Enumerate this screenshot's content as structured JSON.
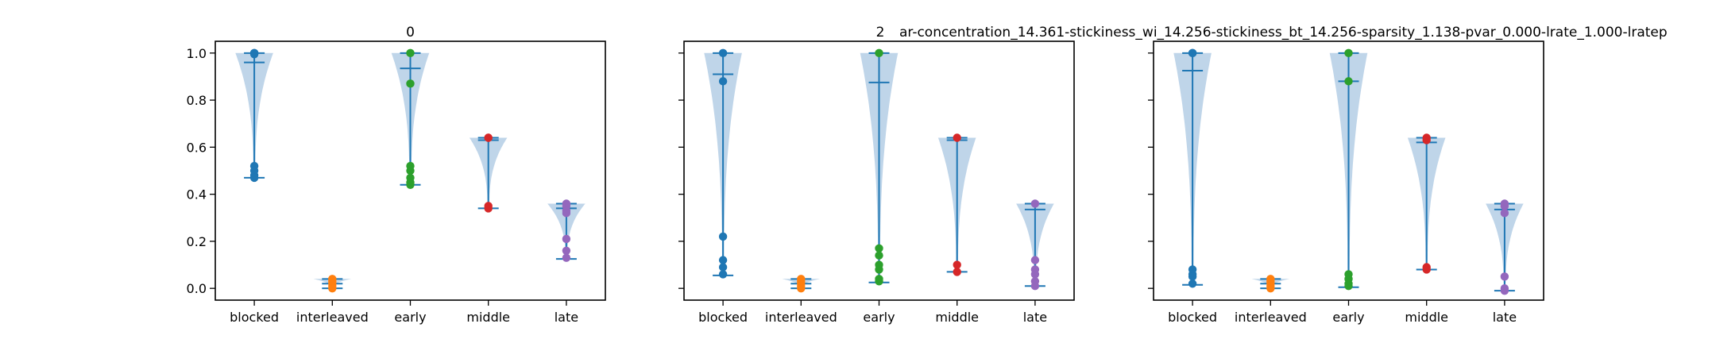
{
  "figure": {
    "long_title": "ar-concentration_14.361-stickiness_wi_14.256-stickiness_bt_14.256-sparsity_1.138-pvar_0.000-lrate_1.000-lratep"
  },
  "colors": {
    "violin_fill": "#bcd3e8",
    "stem": "#1f77b4",
    "blocked": "#1f77b4",
    "interleaved": "#ff7f0e",
    "early": "#2ca02c",
    "middle": "#d62728",
    "late": "#9467bd"
  },
  "chart_data": [
    {
      "type": "violin",
      "title": "0",
      "categories": [
        "blocked",
        "interleaved",
        "early",
        "middle",
        "late"
      ],
      "ylim": [
        -0.05,
        1.05
      ],
      "yticks": [
        0.0,
        0.2,
        0.4,
        0.6,
        0.8,
        1.0
      ],
      "ytick_labels": [
        "0.0",
        "0.2",
        "0.4",
        "0.6",
        "0.8",
        "1.0"
      ],
      "groups": [
        {
          "name": "blocked",
          "min": 0.47,
          "max": 1.0,
          "mean": 0.96,
          "points": [
            1.0,
            1.0,
            0.995,
            0.52,
            0.5,
            0.48,
            0.47
          ]
        },
        {
          "name": "interleaved",
          "min": 0.0,
          "max": 0.04,
          "mean": 0.02,
          "points": [
            0.04,
            0.03,
            0.02,
            0.01,
            0.0
          ]
        },
        {
          "name": "early",
          "min": 0.44,
          "max": 1.0,
          "mean": 0.935,
          "points": [
            1.0,
            0.87,
            0.52,
            0.5,
            0.47,
            0.45,
            0.44
          ]
        },
        {
          "name": "middle",
          "min": 0.34,
          "max": 0.64,
          "mean": 0.63,
          "points": [
            0.64,
            0.64,
            0.35,
            0.34
          ]
        },
        {
          "name": "late",
          "min": 0.125,
          "max": 0.36,
          "mean": 0.34,
          "points": [
            0.36,
            0.35,
            0.33,
            0.32,
            0.21,
            0.16,
            0.13
          ]
        }
      ]
    },
    {
      "type": "violin",
      "title": "2",
      "categories": [
        "blocked",
        "interleaved",
        "early",
        "middle",
        "late"
      ],
      "ylim": [
        -0.05,
        1.05
      ],
      "yticks": [
        0.0,
        0.2,
        0.4,
        0.6,
        0.8,
        1.0
      ],
      "groups": [
        {
          "name": "blocked",
          "min": 0.055,
          "max": 1.0,
          "mean": 0.91,
          "points": [
            1.0,
            0.88,
            0.22,
            0.12,
            0.09,
            0.06
          ]
        },
        {
          "name": "interleaved",
          "min": 0.0,
          "max": 0.04,
          "mean": 0.02,
          "points": [
            0.04,
            0.03,
            0.02,
            0.01,
            0.0
          ]
        },
        {
          "name": "early",
          "min": 0.025,
          "max": 1.0,
          "mean": 0.875,
          "points": [
            1.0,
            0.17,
            0.14,
            0.1,
            0.08,
            0.04,
            0.03
          ]
        },
        {
          "name": "middle",
          "min": 0.07,
          "max": 0.64,
          "mean": 0.63,
          "points": [
            0.64,
            0.1,
            0.07
          ]
        },
        {
          "name": "late",
          "min": 0.01,
          "max": 0.36,
          "mean": 0.335,
          "points": [
            0.36,
            0.12,
            0.08,
            0.06,
            0.03,
            0.01
          ]
        }
      ]
    },
    {
      "type": "violin",
      "title": "",
      "categories": [
        "blocked",
        "interleaved",
        "early",
        "middle",
        "late"
      ],
      "ylim": [
        -0.05,
        1.05
      ],
      "yticks": [
        0.0,
        0.2,
        0.4,
        0.6,
        0.8,
        1.0
      ],
      "groups": [
        {
          "name": "blocked",
          "min": 0.015,
          "max": 1.0,
          "mean": 0.925,
          "points": [
            1.0,
            1.0,
            0.08,
            0.06,
            0.05,
            0.02
          ]
        },
        {
          "name": "interleaved",
          "min": 0.0,
          "max": 0.04,
          "mean": 0.02,
          "points": [
            0.04,
            0.03,
            0.02,
            0.01,
            0.0
          ]
        },
        {
          "name": "early",
          "min": 0.005,
          "max": 1.0,
          "mean": 0.88,
          "points": [
            1.0,
            0.88,
            0.06,
            0.04,
            0.02,
            0.01
          ]
        },
        {
          "name": "middle",
          "min": 0.08,
          "max": 0.64,
          "mean": 0.62,
          "points": [
            0.64,
            0.63,
            0.09,
            0.08
          ]
        },
        {
          "name": "late",
          "min": -0.01,
          "max": 0.36,
          "mean": 0.335,
          "points": [
            0.36,
            0.35,
            0.32,
            0.05,
            0.0,
            -0.01
          ]
        }
      ]
    }
  ]
}
